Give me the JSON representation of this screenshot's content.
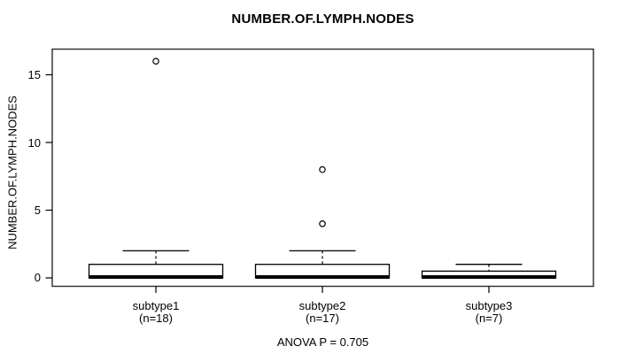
{
  "chart_data": {
    "type": "boxplot",
    "title": "NUMBER.OF.LYMPH.NODES",
    "ylabel": "NUMBER.OF.LYMPH.NODES",
    "footer": "ANOVA P = 0.705",
    "yticks": [
      0,
      5,
      10,
      15
    ],
    "ylim": [
      0,
      16.5
    ],
    "grid": false,
    "groups": [
      {
        "label": "subtype1",
        "n_label": "(n=18)",
        "n": 18,
        "min": 0,
        "q1": 0,
        "median": 0,
        "q3": 1,
        "whisker_high": 2,
        "outliers": [
          16
        ]
      },
      {
        "label": "subtype2",
        "n_label": "(n=17)",
        "n": 17,
        "min": 0,
        "q1": 0,
        "median": 0,
        "q3": 1,
        "whisker_high": 2,
        "outliers": [
          8,
          4
        ]
      },
      {
        "label": "subtype3",
        "n_label": "(n=7)",
        "n": 7,
        "min": 0,
        "q1": 0,
        "median": 0,
        "q3": 0.5,
        "whisker_high": 1,
        "outliers": []
      }
    ],
    "colors": {
      "line": "#000000",
      "box_fill": "#ffffff",
      "background": "#ffffff"
    }
  }
}
